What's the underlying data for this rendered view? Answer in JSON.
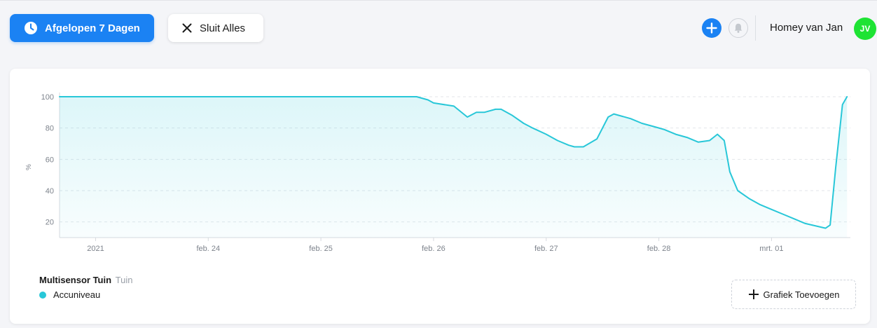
{
  "header": {
    "period_button_label": "Afgelopen 7 Dagen",
    "close_all_label": "Sluit Alles",
    "user_name": "Homey van Jan",
    "avatar_initials": "JV"
  },
  "icons": {
    "period": "clock-icon",
    "close": "close-icon",
    "add": "plus-icon",
    "notifications": "bell-icon",
    "add_graph": "plus-icon"
  },
  "colors": {
    "accent": "#1b82f3",
    "series": "#28c7d8",
    "avatar": "#1ee334"
  },
  "legend": {
    "device_name": "Multisensor Tuin",
    "zone": "Tuin",
    "series_name": "Accuniveau"
  },
  "add_graph_label": "Grafiek Toevoegen",
  "chart_data": {
    "type": "area",
    "ylabel": "%",
    "ylim": [
      10,
      100
    ],
    "yticks": [
      20,
      40,
      60,
      80,
      100
    ],
    "xlim": [
      -0.32,
      6.7
    ],
    "xticks": [
      {
        "value": 0,
        "label": "2021"
      },
      {
        "value": 1,
        "label": "feb. 24"
      },
      {
        "value": 2,
        "label": "feb. 25"
      },
      {
        "value": 3,
        "label": "feb. 26"
      },
      {
        "value": 4,
        "label": "feb. 27"
      },
      {
        "value": 5,
        "label": "feb. 28"
      },
      {
        "value": 6,
        "label": "mrt. 01"
      }
    ],
    "grid": true,
    "series": [
      {
        "name": "Accuniveau",
        "x": [
          -0.32,
          2.85,
          2.95,
          3.0,
          3.18,
          3.3,
          3.38,
          3.45,
          3.55,
          3.6,
          3.7,
          3.8,
          3.88,
          4.0,
          4.1,
          4.2,
          4.25,
          4.33,
          4.45,
          4.55,
          4.6,
          4.75,
          4.85,
          4.95,
          5.05,
          5.15,
          5.25,
          5.35,
          5.45,
          5.52,
          5.58,
          5.63,
          5.7,
          5.8,
          5.9,
          6.0,
          6.1,
          6.2,
          6.3,
          6.42,
          6.48,
          6.52,
          6.57,
          6.63,
          6.67
        ],
        "values": [
          100,
          100,
          98,
          96,
          94,
          87,
          90,
          90,
          92,
          92,
          88,
          83,
          80,
          76,
          72,
          69,
          68,
          68,
          73,
          87,
          89,
          86,
          83,
          81,
          79,
          76,
          74,
          71,
          72,
          76,
          72,
          52,
          40,
          35,
          31,
          28,
          25,
          22,
          19,
          17,
          16,
          18,
          55,
          95,
          100
        ]
      }
    ]
  }
}
